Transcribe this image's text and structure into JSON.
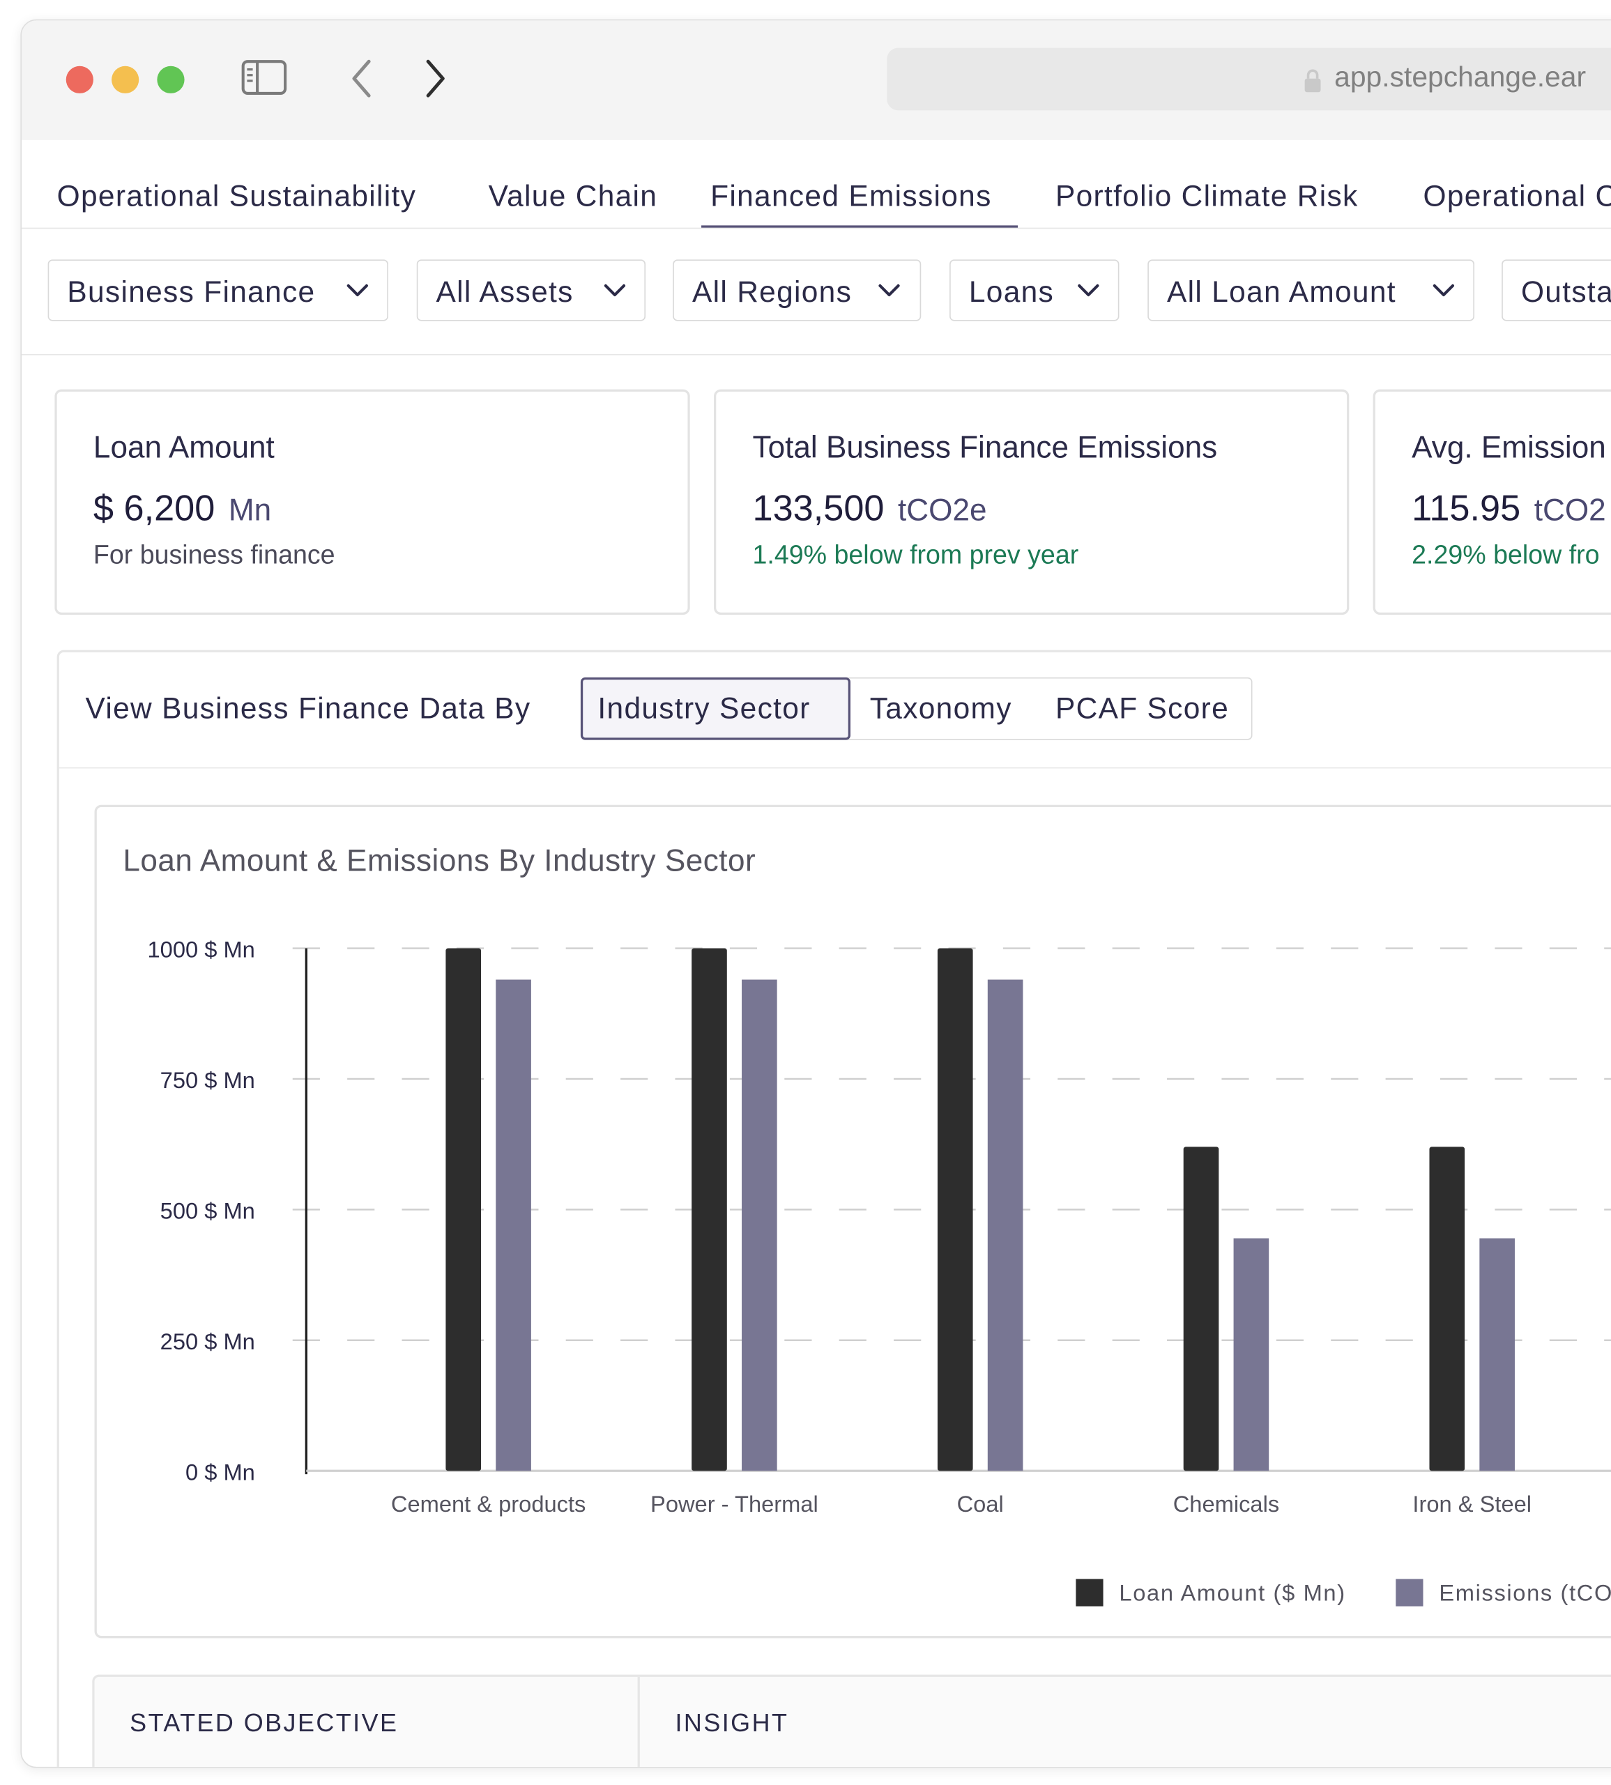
{
  "browser": {
    "url": "app.stepchange.ear"
  },
  "tabs": [
    {
      "label": "Operational Sustainability",
      "active": false
    },
    {
      "label": "Value Chain",
      "active": false
    },
    {
      "label": "Financed Emissions",
      "active": true
    },
    {
      "label": "Portfolio Climate Risk",
      "active": false
    },
    {
      "label": "Operational C",
      "active": false
    }
  ],
  "filters": [
    {
      "label": "Business Finance"
    },
    {
      "label": "All Assets"
    },
    {
      "label": "All Regions"
    },
    {
      "label": "Loans"
    },
    {
      "label": "All Loan Amount"
    },
    {
      "label": "Outsta"
    }
  ],
  "cards": [
    {
      "title": "Loan Amount",
      "value": "$ 6,200",
      "unit": "Mn",
      "sub": "For business finance",
      "sub_color": "neutral"
    },
    {
      "title": "Total Business Finance Emissions",
      "value": "133,500",
      "unit": "tCO2e",
      "sub": "1.49% below from prev year",
      "sub_color": "green"
    },
    {
      "title": "Avg. Emission",
      "value": "115.95",
      "unit": "tCO2",
      "sub": "2.29% below fro",
      "sub_color": "green"
    }
  ],
  "view_by": {
    "label": "View Business Finance Data By",
    "options": [
      "Industry Sector",
      "Taxonomy",
      "PCAF Score"
    ],
    "selected": "Industry Sector"
  },
  "chart_data": {
    "type": "bar",
    "title": "Loan Amount & Emissions By Industry Sector",
    "categories": [
      "Cement & products",
      "Power - Thermal",
      "Coal",
      "Chemicals",
      "Iron & Steel"
    ],
    "series": [
      {
        "name": "Loan Amount ($ Mn)",
        "color": "#2d2d2d",
        "values": [
          1000,
          1000,
          1000,
          620,
          620
        ]
      },
      {
        "name": "Emissions (tCO",
        "color": "#787693",
        "values": [
          940,
          940,
          940,
          445,
          445
        ]
      }
    ],
    "ylim": [
      0,
      1000
    ],
    "yticks": [
      0,
      250,
      500,
      750,
      1000
    ],
    "ytick_suffix": "$ Mn",
    "grid": true,
    "legend": "bottom-right"
  },
  "table": {
    "headers": [
      "STATED OBJECTIVE",
      "INSIGHT"
    ]
  }
}
